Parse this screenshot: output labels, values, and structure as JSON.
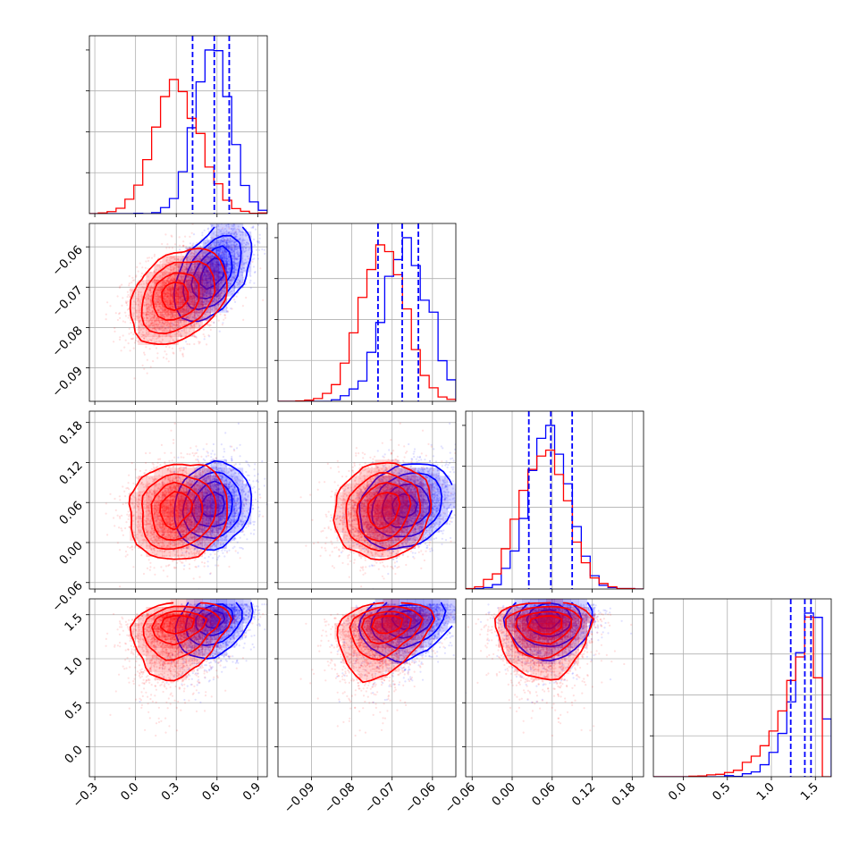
{
  "chart_data": {
    "type": "corner",
    "parameters": [
      {
        "range": [
          -0.34,
          0.97
        ],
        "ticks": [
          "−0.3",
          "0.0",
          "0.3",
          "0.6",
          "0.9"
        ],
        "tick_values": [
          -0.3,
          0.0,
          0.3,
          0.6,
          0.9
        ]
      },
      {
        "range": [
          -0.0983,
          -0.0542
        ],
        "ticks": [
          "−0.09",
          "−0.08",
          "−0.07",
          "−0.06"
        ],
        "tick_values": [
          -0.09,
          -0.08,
          -0.07,
          -0.06
        ]
      },
      {
        "range": [
          -0.0697,
          0.197
        ],
        "ticks": [
          "−0.06",
          "0.00",
          "0.06",
          "0.12",
          "0.18"
        ],
        "tick_values": [
          -0.06,
          0.0,
          0.06,
          0.12,
          0.18
        ]
      },
      {
        "range": [
          -0.34,
          1.68
        ],
        "ticks": [
          "0.0",
          "0.5",
          "1.0",
          "1.5"
        ],
        "tick_values": [
          0.0,
          0.5,
          1.0,
          1.5
        ]
      }
    ],
    "series": [
      {
        "color": "#0000ff",
        "means": [
          0.57,
          -0.0665,
          0.055,
          1.38
        ],
        "sds": [
          0.13,
          0.0055,
          0.03,
          0.17
        ],
        "corr": [
          0.55,
          0.15,
          0.35,
          0.25,
          0.3,
          0.05
        ],
        "skew4": -0.6,
        "quantiles": [
          [
            0.42,
            0.58,
            0.69
          ],
          [
            -0.0735,
            -0.0675,
            -0.0635
          ],
          [
            0.025,
            0.058,
            0.09
          ],
          [
            1.22,
            1.38,
            1.45
          ]
        ]
      },
      {
        "color": "#ff0000",
        "means": [
          0.3,
          -0.0725,
          0.045,
          1.25
        ],
        "sds": [
          0.17,
          0.0055,
          0.035,
          0.22
        ],
        "corr": [
          0.35,
          0.1,
          0.25,
          0.15,
          0.3,
          0.05
        ],
        "skew4": -0.8
      }
    ],
    "n_samples": 2500,
    "grid": true
  }
}
